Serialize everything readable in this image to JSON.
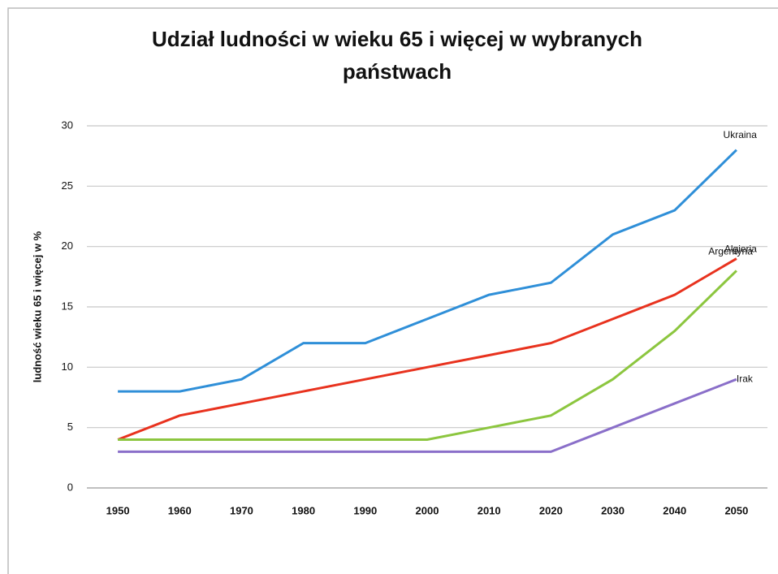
{
  "chart_data": {
    "type": "line",
    "title": "Udział ludności w wieku 65 i więcej w wybranych państwach",
    "y_label": "ludność wieku 65 i więcej w %",
    "x": [
      1950,
      1960,
      1970,
      1980,
      1990,
      2000,
      2010,
      2020,
      2030,
      2040,
      2050
    ],
    "xlim": [
      1945,
      2055
    ],
    "xticks": [
      1950,
      1960,
      1970,
      1980,
      1990,
      2000,
      2010,
      2020,
      2030,
      2040,
      2050
    ],
    "ylim": [
      0,
      30
    ],
    "yticks": [
      0,
      5,
      10,
      15,
      20,
      25,
      30
    ],
    "grid": true,
    "series": [
      {
        "name": "Ukraina",
        "color": "#2f8fd8",
        "values": [
          8,
          8,
          9,
          12,
          12,
          14,
          16,
          17,
          21,
          23,
          28
        ]
      },
      {
        "name": "Argentyna",
        "color": "#e8321e",
        "values": [
          4,
          6,
          7,
          8,
          9,
          10,
          11,
          12,
          14,
          16,
          19
        ]
      },
      {
        "name": "Algieria",
        "color": "#8cc63f",
        "values": [
          4,
          4,
          4,
          4,
          4,
          4,
          5,
          6,
          9,
          13,
          18
        ]
      },
      {
        "name": "Irak",
        "color": "#8a6fc9",
        "values": [
          3,
          3,
          3,
          3,
          3,
          3,
          3,
          3,
          5,
          7,
          9
        ]
      }
    ]
  }
}
